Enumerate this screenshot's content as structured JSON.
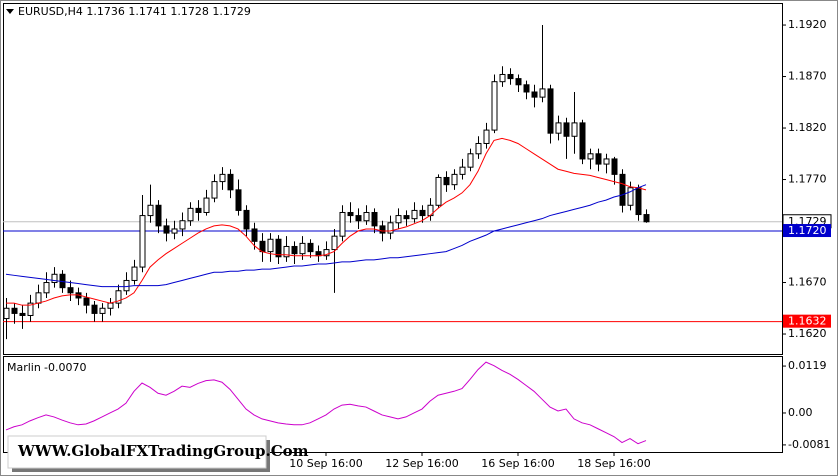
{
  "chart_data": {
    "type": "candlestick",
    "title": "EURUSD,H4  1.1736 1.1741 1.1728 1.1729",
    "watermark": "WWW.GlobalFXTradingGroup.Com",
    "categories": [
      null,
      null,
      null,
      null,
      null,
      null,
      null,
      null,
      null,
      null,
      null,
      null,
      null,
      null,
      null,
      null,
      null,
      null,
      null,
      null,
      null,
      null,
      null,
      null,
      null,
      null,
      null,
      null,
      null,
      null,
      null,
      null,
      null,
      null,
      null,
      null,
      null,
      null,
      null,
      null,
      "10 Sep 16:00",
      null,
      null,
      null,
      null,
      null,
      null,
      null,
      null,
      null,
      null,
      null,
      "12 Sep 16:00",
      null,
      null,
      null,
      null,
      null,
      null,
      null,
      null,
      null,
      null,
      null,
      "16 Sep 16:00",
      null,
      null,
      null,
      null,
      null,
      null,
      null,
      null,
      null,
      null,
      null,
      "18 Sep 16:00",
      null,
      null,
      null,
      null
    ],
    "candles": [
      [
        1.1635,
        1.1655,
        1.1615,
        1.1645
      ],
      [
        1.1645,
        1.165,
        1.163,
        1.164
      ],
      [
        1.164,
        1.1648,
        1.1625,
        1.1638
      ],
      [
        1.1638,
        1.1658,
        1.1632,
        1.165
      ],
      [
        1.165,
        1.1668,
        1.1645,
        1.166
      ],
      [
        1.166,
        1.168,
        1.1655,
        1.167
      ],
      [
        1.167,
        1.1685,
        1.1665,
        1.1678
      ],
      [
        1.1678,
        1.1682,
        1.166,
        1.1665
      ],
      [
        1.1665,
        1.1672,
        1.1652,
        1.166
      ],
      [
        1.166,
        1.1665,
        1.1648,
        1.1655
      ],
      [
        1.1655,
        1.166,
        1.164,
        1.1648
      ],
      [
        1.1648,
        1.1652,
        1.1632,
        1.164
      ],
      [
        1.164,
        1.165,
        1.1632,
        1.1645
      ],
      [
        1.1645,
        1.1655,
        1.1638,
        1.165
      ],
      [
        1.165,
        1.1668,
        1.1645,
        1.1662
      ],
      [
        1.1662,
        1.168,
        1.1658,
        1.1672
      ],
      [
        1.1672,
        1.1692,
        1.1668,
        1.1685
      ],
      [
        1.1685,
        1.1755,
        1.168,
        1.1735
      ],
      [
        1.1735,
        1.1765,
        1.1728,
        1.1745
      ],
      [
        1.1745,
        1.175,
        1.1718,
        1.1725
      ],
      [
        1.1725,
        1.1732,
        1.171,
        1.1718
      ],
      [
        1.1718,
        1.173,
        1.1712,
        1.1722
      ],
      [
        1.1722,
        1.1738,
        1.1715,
        1.173
      ],
      [
        1.173,
        1.1748,
        1.1725,
        1.1742
      ],
      [
        1.1742,
        1.175,
        1.173,
        1.1738
      ],
      [
        1.1738,
        1.176,
        1.1735,
        1.1752
      ],
      [
        1.1752,
        1.1775,
        1.1748,
        1.1768
      ],
      [
        1.1768,
        1.1782,
        1.176,
        1.1775
      ],
      [
        1.1775,
        1.178,
        1.1752,
        1.176
      ],
      [
        1.176,
        1.177,
        1.1735,
        1.174
      ],
      [
        1.174,
        1.1745,
        1.1715,
        1.1722
      ],
      [
        1.1722,
        1.1728,
        1.1702,
        1.171
      ],
      [
        1.171,
        1.1718,
        1.169,
        1.17
      ],
      [
        1.17,
        1.1718,
        1.169,
        1.1712
      ],
      [
        1.1712,
        1.1716,
        1.1688,
        1.1695
      ],
      [
        1.1695,
        1.1715,
        1.169,
        1.1705
      ],
      [
        1.1705,
        1.171,
        1.1688,
        1.1698
      ],
      [
        1.1698,
        1.1715,
        1.1692,
        1.1708
      ],
      [
        1.1708,
        1.1712,
        1.1694,
        1.17
      ],
      [
        1.17,
        1.1706,
        1.169,
        1.1696
      ],
      [
        1.1696,
        1.171,
        1.1692,
        1.1702
      ],
      [
        1.1702,
        1.1722,
        1.166,
        1.1715
      ],
      [
        1.1715,
        1.1745,
        1.171,
        1.1738
      ],
      [
        1.1738,
        1.1748,
        1.1728,
        1.1735
      ],
      [
        1.1735,
        1.1742,
        1.1722,
        1.173
      ],
      [
        1.173,
        1.1745,
        1.1726,
        1.1738
      ],
      [
        1.1738,
        1.1742,
        1.1718,
        1.1725
      ],
      [
        1.1725,
        1.173,
        1.171,
        1.1718
      ],
      [
        1.1718,
        1.1735,
        1.1712,
        1.1728
      ],
      [
        1.1728,
        1.1742,
        1.1722,
        1.1735
      ],
      [
        1.1735,
        1.174,
        1.1725,
        1.1732
      ],
      [
        1.1732,
        1.1748,
        1.1728,
        1.174
      ],
      [
        1.174,
        1.1745,
        1.1728,
        1.1735
      ],
      [
        1.1735,
        1.1752,
        1.173,
        1.1745
      ],
      [
        1.1745,
        1.1775,
        1.1742,
        1.1772
      ],
      [
        1.1772,
        1.1778,
        1.1758,
        1.1765
      ],
      [
        1.1765,
        1.178,
        1.176,
        1.1775
      ],
      [
        1.1775,
        1.179,
        1.177,
        1.1782
      ],
      [
        1.1782,
        1.18,
        1.1778,
        1.1795
      ],
      [
        1.1795,
        1.1812,
        1.179,
        1.1805
      ],
      [
        1.1805,
        1.1825,
        1.18,
        1.1818
      ],
      [
        1.1818,
        1.1872,
        1.1815,
        1.1865
      ],
      [
        1.1865,
        1.188,
        1.186,
        1.1872
      ],
      [
        1.1872,
        1.1878,
        1.1862,
        1.1868
      ],
      [
        1.1868,
        1.1872,
        1.1855,
        1.1862
      ],
      [
        1.1862,
        1.1866,
        1.1848,
        1.1855
      ],
      [
        1.1855,
        1.1862,
        1.184,
        1.185
      ],
      [
        1.185,
        1.192,
        1.1845,
        1.1858
      ],
      [
        1.1858,
        1.1862,
        1.1805,
        1.1815
      ],
      [
        1.1815,
        1.1832,
        1.1808,
        1.1825
      ],
      [
        1.1825,
        1.183,
        1.179,
        1.1812
      ],
      [
        1.1812,
        1.1855,
        1.1795,
        1.1825
      ],
      [
        1.1825,
        1.1828,
        1.1785,
        1.179
      ],
      [
        1.179,
        1.18,
        1.178,
        1.1795
      ],
      [
        1.1795,
        1.18,
        1.1778,
        1.1785
      ],
      [
        1.1785,
        1.1795,
        1.1776,
        1.179
      ],
      [
        1.179,
        1.1792,
        1.1765,
        1.1775
      ],
      [
        1.1775,
        1.178,
        1.1738,
        1.1745
      ],
      [
        1.1745,
        1.1768,
        1.174,
        1.1762
      ],
      [
        1.1762,
        1.1765,
        1.173,
        1.1736
      ],
      [
        1.1736,
        1.1741,
        1.1728,
        1.1729
      ]
    ],
    "series": [
      {
        "color": "#ff0000",
        "values": [
          1.165,
          1.165,
          1.1648,
          1.1648,
          1.165,
          1.1652,
          1.1655,
          1.1657,
          1.1658,
          1.1658,
          1.1656,
          1.1654,
          1.1652,
          1.165,
          1.1652,
          1.1655,
          1.166,
          1.1672,
          1.1685,
          1.1692,
          1.1698,
          1.1703,
          1.1708,
          1.1713,
          1.1718,
          1.1722,
          1.1725,
          1.1726,
          1.1725,
          1.1722,
          1.1715,
          1.1706,
          1.17,
          1.1698,
          1.1697,
          1.1697,
          1.1696,
          1.1696,
          1.1696,
          1.1696,
          1.1697,
          1.17,
          1.1708,
          1.1715,
          1.172,
          1.1722,
          1.1722,
          1.172,
          1.172,
          1.1722,
          1.1724,
          1.1727,
          1.173,
          1.1735,
          1.1742,
          1.1748,
          1.1752,
          1.1757,
          1.1765,
          1.1778,
          1.1795,
          1.1808,
          1.181,
          1.1808,
          1.1805,
          1.18,
          1.1795,
          1.179,
          1.1785,
          1.178,
          1.1778,
          1.1776,
          1.1775,
          1.1774,
          1.1772,
          1.177,
          1.1768,
          1.1766,
          1.1763,
          1.1762,
          1.176
        ]
      },
      {
        "color": "#0000cc",
        "values": [
          1.1678,
          1.1677,
          1.1676,
          1.1675,
          1.1674,
          1.1673,
          1.1672,
          1.1671,
          1.167,
          1.1669,
          1.1668,
          1.1667,
          1.1666,
          1.1666,
          1.1666,
          1.1666,
          1.1667,
          1.1667,
          1.1667,
          1.1667,
          1.1668,
          1.167,
          1.1672,
          1.1674,
          1.1676,
          1.1678,
          1.168,
          1.168,
          1.1681,
          1.1681,
          1.1682,
          1.1682,
          1.1683,
          1.1683,
          1.1684,
          1.1685,
          1.1686,
          1.1686,
          1.1687,
          1.1688,
          1.1688,
          1.1689,
          1.169,
          1.169,
          1.1691,
          1.1692,
          1.1692,
          1.1693,
          1.1694,
          1.1694,
          1.1695,
          1.1696,
          1.1697,
          1.1698,
          1.1699,
          1.17,
          1.1703,
          1.1706,
          1.171,
          1.1713,
          1.1716,
          1.172,
          1.1722,
          1.1724,
          1.1726,
          1.1728,
          1.173,
          1.1732,
          1.1735,
          1.1737,
          1.1739,
          1.1741,
          1.1743,
          1.1745,
          1.1748,
          1.175,
          1.1753,
          1.1755,
          1.1758,
          1.1762,
          1.1765
        ]
      }
    ],
    "levels": [
      {
        "value": 1.172,
        "label": "1.1720",
        "color": "#0000cc"
      },
      {
        "value": 1.1632,
        "label": "1.1632",
        "color": "#ff0000"
      }
    ],
    "bid": {
      "value": 1.1729,
      "label": "1.1729"
    },
    "ylim": [
      1.16006,
      1.19414
    ],
    "yticks": [
      {
        "value": 1.162,
        "label": "1.1620"
      },
      {
        "value": 1.167,
        "label": "1.1670"
      },
      {
        "value": 1.177,
        "label": "1.1770"
      },
      {
        "value": 1.182,
        "label": "1.1820"
      },
      {
        "value": 1.187,
        "label": "1.1870"
      },
      {
        "value": 1.192,
        "label": "1.1920"
      }
    ],
    "indicator": {
      "name": "Marlin",
      "last_label": "-0.0070",
      "color": "#cc00cc",
      "values": [
        -0.0043,
        -0.0035,
        -0.003,
        -0.002,
        -0.0012,
        -0.0005,
        -0.001,
        -0.0018,
        -0.0025,
        -0.003,
        -0.0028,
        -0.002,
        -0.001,
        0,
        0.001,
        0.0025,
        0.0055,
        0.0076,
        0.0065,
        0.005,
        0.0045,
        0.0055,
        0.0068,
        0.0065,
        0.0075,
        0.0082,
        0.0084,
        0.0078,
        0.006,
        0.0035,
        0.001,
        -0.0005,
        -0.0015,
        -0.002,
        -0.0025,
        -0.0028,
        -0.003,
        -0.003,
        -0.0025,
        -0.0015,
        -0.0005,
        0.001,
        0.002,
        0.0022,
        0.0018,
        0.0015,
        0.0005,
        -0.0005,
        -0.001,
        -0.0015,
        -0.001,
        0,
        0.001,
        0.003,
        0.0045,
        0.005,
        0.0055,
        0.0062,
        0.0085,
        0.011,
        0.0129,
        0.012,
        0.0108,
        0.0098,
        0.0085,
        0.007,
        0.0055,
        0.0035,
        0.0015,
        0.0005,
        0.001,
        -0.0015,
        -0.0025,
        -0.003,
        -0.004,
        -0.005,
        -0.006,
        -0.0075,
        -0.0065,
        -0.0078,
        -0.007
      ],
      "ylim": [
        -0.0099,
        0.0142
      ],
      "yticks": [
        -0.0081,
        {
          "value": 0,
          "label": "0.00"
        },
        0.0119
      ]
    }
  }
}
